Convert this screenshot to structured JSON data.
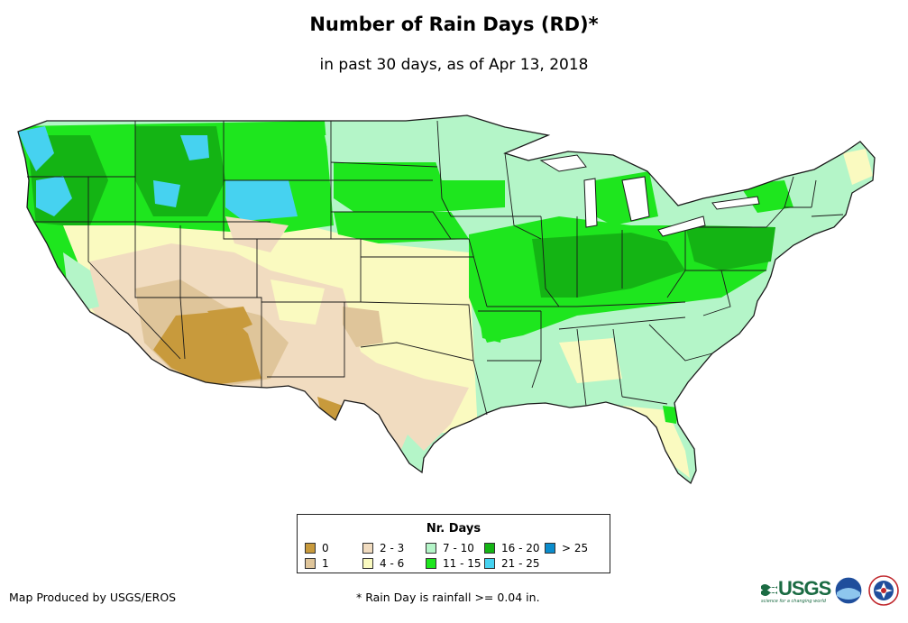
{
  "title": "Number of Rain Days (RD)*",
  "subtitle": "in past 30 days, as of Apr 13, 2018",
  "legend": {
    "title": "Nr. Days",
    "items": [
      {
        "label": "0",
        "color": "#c89a3c"
      },
      {
        "label": "1",
        "color": "#dfc59a"
      },
      {
        "label": "2 - 3",
        "color": "#f1dcc0"
      },
      {
        "label": "4 - 6",
        "color": "#fafac0"
      },
      {
        "label": "7 - 10",
        "color": "#b4f5c8"
      },
      {
        "label": "11 - 15",
        "color": "#1ee61e"
      },
      {
        "label": "16 - 20",
        "color": "#14b414"
      },
      {
        "label": "21 - 25",
        "color": "#46d2f0"
      },
      {
        "label": "> 25",
        "color": "#0a8ccc"
      }
    ]
  },
  "footer": {
    "credit": "Map Produced by USGS/EROS",
    "note": "* Rain Day is rainfall >= 0.04 in."
  },
  "logos": {
    "usgs": "USGS",
    "usgs_tagline": "science for a changing world"
  },
  "map": {
    "region": "Contiguous United States",
    "state_border_color": "#1a1a1a"
  }
}
